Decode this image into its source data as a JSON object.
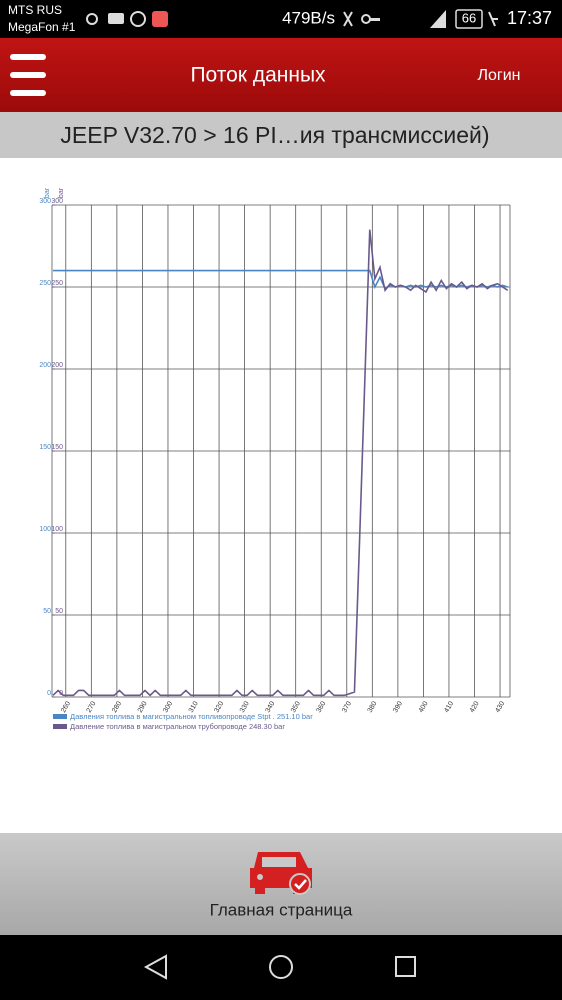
{
  "status_bar": {
    "carrier": "MTS RUS",
    "carrier2": "MegaFon #1",
    "speed": "479B/s",
    "battery": "66",
    "time": "17:37"
  },
  "header": {
    "title": "Поток данных",
    "login": "Логин"
  },
  "breadcrumb": "JEEP V32.70 > 16 PI…ия трансмиссией)",
  "chart_data": {
    "type": "line",
    "x": [
      255,
      257,
      259,
      261,
      263,
      265,
      267,
      269,
      271,
      273,
      275,
      277,
      279,
      281,
      283,
      285,
      287,
      289,
      291,
      293,
      295,
      297,
      299,
      301,
      303,
      305,
      307,
      309,
      311,
      313,
      315,
      317,
      319,
      321,
      323,
      325,
      327,
      329,
      331,
      333,
      335,
      337,
      339,
      341,
      343,
      345,
      347,
      349,
      351,
      353,
      355,
      357,
      359,
      361,
      363,
      365,
      367,
      369,
      371,
      373,
      375,
      377,
      379,
      381,
      383,
      385,
      387,
      389,
      391,
      393,
      395,
      397,
      399,
      401,
      403,
      405,
      407,
      409,
      411,
      413,
      415,
      417,
      419,
      421,
      423,
      425,
      427,
      429,
      431,
      433
    ],
    "series": [
      {
        "name": "Давления топлива в магистральном топливопроводе  Stpt . 251.10 bar",
        "color": "#4a86c5",
        "values": [
          260,
          260,
          260,
          260,
          260,
          260,
          260,
          260,
          260,
          260,
          260,
          260,
          260,
          260,
          260,
          260,
          260,
          260,
          260,
          260,
          260,
          260,
          260,
          260,
          260,
          260,
          260,
          260,
          260,
          260,
          260,
          260,
          260,
          260,
          260,
          260,
          260,
          260,
          260,
          260,
          260,
          260,
          260,
          260,
          260,
          260,
          260,
          260,
          260,
          260,
          260,
          260,
          260,
          260,
          260,
          260,
          260,
          260,
          260,
          260,
          260,
          260,
          260,
          250,
          256,
          249,
          251,
          250,
          251,
          250,
          251,
          250,
          251,
          250,
          251,
          250,
          251,
          250,
          251,
          250,
          251,
          250,
          251,
          250,
          251,
          250,
          251,
          250,
          251,
          250
        ]
      },
      {
        "name": "Давление топлива в магистральном трубопроводе 248.30 bar",
        "color": "#6a5a8c",
        "axis": "y2",
        "values": [
          1,
          4,
          1,
          1,
          1,
          4,
          4,
          1,
          1,
          1,
          1,
          1,
          1,
          4,
          1,
          1,
          1,
          1,
          4,
          1,
          4,
          1,
          1,
          1,
          1,
          1,
          4,
          1,
          1,
          1,
          1,
          1,
          1,
          1,
          1,
          1,
          4,
          1,
          1,
          4,
          1,
          1,
          1,
          1,
          4,
          1,
          1,
          1,
          1,
          1,
          4,
          1,
          1,
          1,
          4,
          1,
          1,
          1,
          2,
          3,
          95,
          190,
          285,
          255,
          262,
          248,
          252,
          250,
          251,
          250,
          248,
          251,
          249,
          247,
          253,
          248,
          254,
          249,
          252,
          250,
          253,
          249,
          251,
          250,
          252,
          249,
          251,
          252,
          250,
          248
        ]
      }
    ],
    "xlim": [
      254.6,
      433.9
    ],
    "xticks": [
      260,
      270,
      280,
      290,
      300,
      310,
      320,
      330,
      340,
      350,
      360,
      370,
      380,
      390,
      400,
      410,
      420,
      430
    ],
    "ylim": [
      0,
      300
    ],
    "yticks": [
      0,
      50,
      100,
      150,
      200,
      250,
      300
    ],
    "y2lim": [
      0,
      300
    ],
    "y2ticks": [
      0,
      50,
      100,
      150,
      200,
      250,
      300
    ],
    "ylabel": "bar",
    "y2label": "bar",
    "grid": true
  },
  "footer": {
    "home": "Главная страница"
  }
}
